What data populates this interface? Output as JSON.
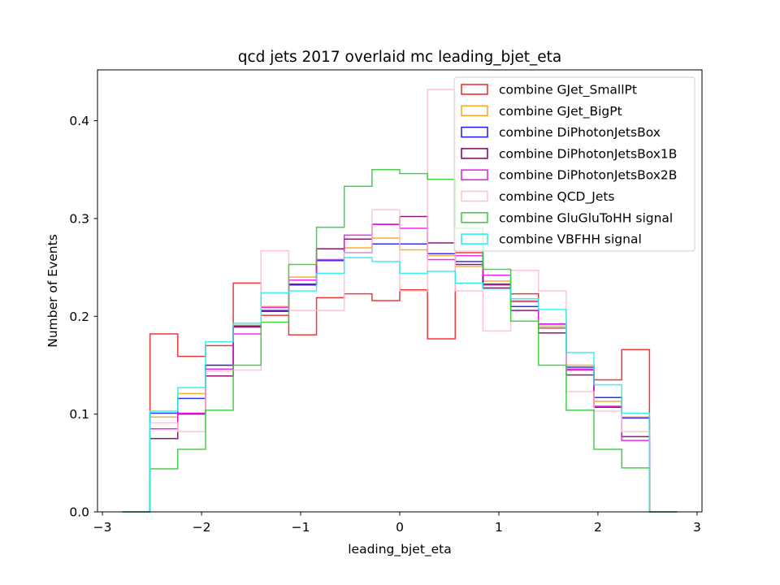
{
  "chart_data": {
    "type": "histogram-step",
    "title": "qcd jets 2017 overlaid mc leading_bjet_eta",
    "xlabel": "leading_bjet_eta",
    "ylabel": "Number of Events",
    "xlim": [
      -3.05,
      3.05
    ],
    "ylim": [
      0.0,
      0.452
    ],
    "xticks": [
      -3,
      -2,
      -1,
      0,
      1,
      2,
      3
    ],
    "xtick_labels": [
      "−3",
      "−2",
      "−1",
      "0",
      "1",
      "2",
      "3"
    ],
    "yticks": [
      0.0,
      0.1,
      0.2,
      0.3,
      0.4
    ],
    "ytick_labels": [
      "0.0",
      "0.1",
      "0.2",
      "0.3",
      "0.4"
    ],
    "grid": false,
    "legend_position": "top-right",
    "bin_edges": [
      -2.8,
      -2.52,
      -2.24,
      -1.96,
      -1.68,
      -1.4,
      -1.12,
      -0.84,
      -0.56,
      -0.28,
      0.0,
      0.28,
      0.56,
      0.84,
      1.12,
      1.4,
      1.68,
      1.96,
      2.24,
      2.52,
      2.8
    ],
    "series": [
      {
        "name": "combine GJet_SmallPt",
        "color": "#ee2222",
        "values": [
          0.0,
          0.182,
          0.159,
          0.17,
          0.234,
          0.201,
          0.181,
          0.219,
          0.223,
          0.216,
          0.227,
          0.177,
          0.265,
          0.232,
          0.223,
          0.188,
          0.145,
          0.135,
          0.166,
          0.0
        ]
      },
      {
        "name": "combine GJet_BigPt",
        "color": "#f5a623",
        "values": [
          0.0,
          0.097,
          0.121,
          0.15,
          0.191,
          0.21,
          0.24,
          0.257,
          0.27,
          0.28,
          0.268,
          0.262,
          0.251,
          0.236,
          0.216,
          0.19,
          0.15,
          0.113,
          0.097,
          0.0
        ]
      },
      {
        "name": "combine DiPhotonJetsBox",
        "color": "#1a1aff",
        "values": [
          0.0,
          0.101,
          0.116,
          0.15,
          0.19,
          0.206,
          0.232,
          0.257,
          0.265,
          0.274,
          0.274,
          0.264,
          0.256,
          0.233,
          0.21,
          0.192,
          0.148,
          0.117,
          0.096,
          0.0
        ]
      },
      {
        "name": "combine DiPhotonJetsBox1B",
        "color": "#800060",
        "values": [
          0.0,
          0.075,
          0.1,
          0.139,
          0.189,
          0.205,
          0.233,
          0.269,
          0.279,
          0.294,
          0.302,
          0.275,
          0.253,
          0.229,
          0.206,
          0.183,
          0.14,
          0.107,
          0.077,
          0.0
        ]
      },
      {
        "name": "combine DiPhotonJetsBox2B",
        "color": "#ee10ee",
        "values": [
          0.0,
          0.085,
          0.101,
          0.146,
          0.182,
          0.209,
          0.237,
          0.258,
          0.283,
          0.294,
          0.29,
          0.258,
          0.262,
          0.242,
          0.215,
          0.192,
          0.146,
          0.108,
          0.073,
          0.0
        ]
      },
      {
        "name": "combine QCD_Jets",
        "color": "#ffc0cb",
        "values": [
          0.0,
          0.091,
          0.082,
          0.144,
          0.145,
          0.267,
          0.206,
          0.206,
          0.265,
          0.309,
          0.226,
          0.432,
          0.226,
          0.185,
          0.247,
          0.226,
          0.123,
          0.103,
          0.082,
          0.0
        ]
      },
      {
        "name": "combine GluGluToHH signal",
        "color": "#33cc33",
        "values": [
          0.0,
          0.044,
          0.064,
          0.104,
          0.15,
          0.194,
          0.253,
          0.291,
          0.333,
          0.35,
          0.346,
          0.34,
          0.29,
          0.248,
          0.195,
          0.15,
          0.104,
          0.064,
          0.045,
          0.0
        ]
      },
      {
        "name": "combine VBFHH signal",
        "color": "#22eeee",
        "values": [
          0.0,
          0.103,
          0.127,
          0.174,
          0.193,
          0.224,
          0.226,
          0.244,
          0.26,
          0.256,
          0.244,
          0.246,
          0.234,
          0.228,
          0.218,
          0.207,
          0.163,
          0.13,
          0.101,
          0.0
        ]
      }
    ]
  }
}
